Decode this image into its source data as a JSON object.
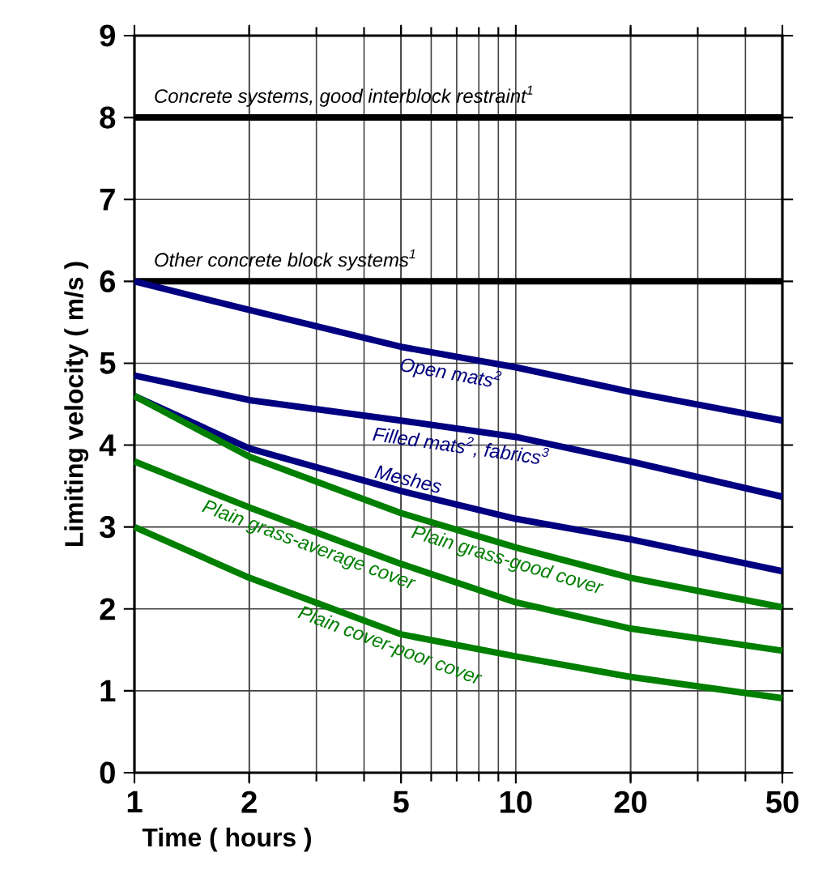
{
  "chart_data": {
    "type": "line",
    "xlabel": "Time ( hours )",
    "ylabel": "Limiting velocity ( m/s )",
    "log": "x",
    "xlim": [
      1,
      50
    ],
    "ylim": [
      0,
      9
    ],
    "xticks": [
      1,
      2,
      5,
      10,
      20,
      50
    ],
    "yticks": [
      0,
      1,
      2,
      3,
      4,
      5,
      6,
      7,
      8,
      9
    ],
    "grid": true,
    "marker": "none",
    "line_style": "solid",
    "x": [
      1,
      2,
      5,
      10,
      20,
      50
    ],
    "series": [
      {
        "name": "Concrete systems, good interblock restraint$^{1}$",
        "color": "#000000",
        "values": [
          8,
          8,
          8,
          8,
          8,
          8
        ]
      },
      {
        "name": "Other concrete block systems$^{1}$",
        "color": "#000000",
        "values": [
          6,
          6,
          6,
          6,
          6,
          6
        ]
      },
      {
        "name": "Open mats$^{2}$",
        "color": "#000080",
        "values": [
          6,
          5.65,
          5.2,
          4.95,
          4.65,
          4.3
        ]
      },
      {
        "name": "Filled mats$^{2}$, fabrics$^{3}$",
        "color": "#000080",
        "values": [
          4.85,
          4.55,
          4.3,
          4.1,
          3.8,
          3.37
        ]
      },
      {
        "name": "Meshes",
        "color": "#000080",
        "values": [
          4.6,
          3.96,
          3.44,
          3.1,
          2.85,
          2.46
        ]
      },
      {
        "name": "Plain grass-good cover",
        "color": "#007f00",
        "values": [
          4.6,
          3.86,
          3.17,
          2.75,
          2.38,
          2.02
        ]
      },
      {
        "name": "Plain grass-average cover",
        "color": "#007f00",
        "values": [
          3.8,
          3.24,
          2.55,
          2.08,
          1.76,
          1.49
        ]
      },
      {
        "name": "Plain cover-poor cover",
        "color": "#007f00",
        "values": [
          3.0,
          2.38,
          1.69,
          1.42,
          1.17,
          0.91
        ]
      }
    ]
  }
}
